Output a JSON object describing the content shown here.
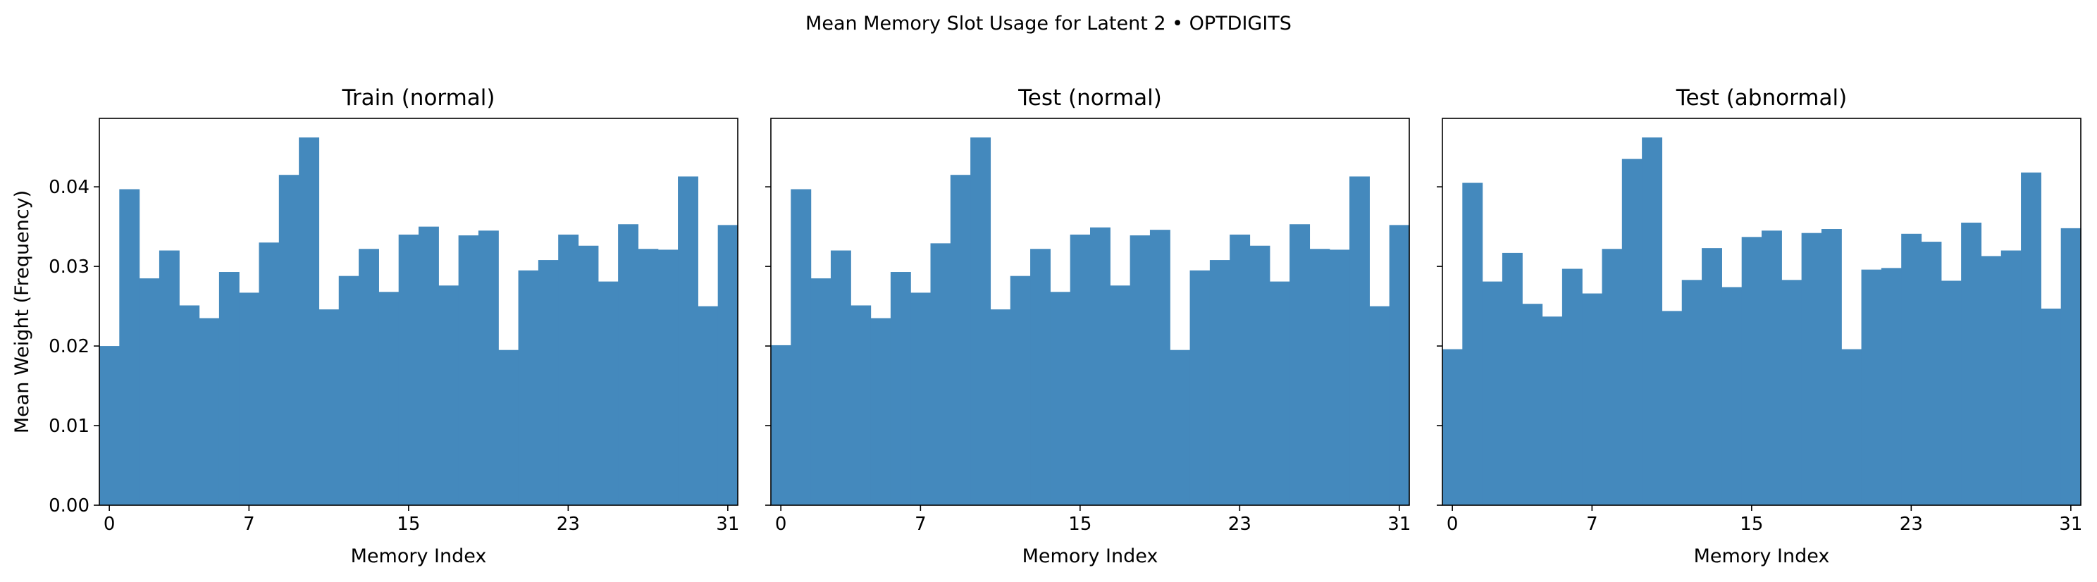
{
  "suptitle": "Mean Memory Slot Usage for Latent 2 • OPTDIGITS",
  "colors": {
    "bar": "#4489bd",
    "axis": "#000000",
    "background": "#ffffff"
  },
  "chart_data": [
    {
      "type": "bar",
      "title": "Train (normal)",
      "xlabel": "Memory Index",
      "ylabel": "Mean Weight (Frequency)",
      "x_ticks": [
        "0",
        "7",
        "15",
        "23",
        "31"
      ],
      "y_ticks": [
        "0.00",
        "0.01",
        "0.02",
        "0.03",
        "0.04"
      ],
      "categories": [
        0,
        1,
        2,
        3,
        4,
        5,
        6,
        7,
        8,
        9,
        10,
        11,
        12,
        13,
        14,
        15,
        16,
        17,
        18,
        19,
        20,
        21,
        22,
        23,
        24,
        25,
        26,
        27,
        28,
        29,
        30,
        31
      ],
      "values": [
        0.02,
        0.0397,
        0.0285,
        0.032,
        0.0251,
        0.0235,
        0.0293,
        0.0267,
        0.033,
        0.0415,
        0.0462,
        0.0246,
        0.0288,
        0.0322,
        0.0268,
        0.034,
        0.035,
        0.0276,
        0.0339,
        0.0345,
        0.0195,
        0.0295,
        0.0308,
        0.034,
        0.0326,
        0.0281,
        0.0353,
        0.0322,
        0.0321,
        0.0413,
        0.025,
        0.0352
      ],
      "ylim": [
        0,
        0.0486
      ],
      "grid": false
    },
    {
      "type": "bar",
      "title": "Test (normal)",
      "xlabel": "Memory Index",
      "ylabel": "",
      "x_ticks": [
        "0",
        "7",
        "15",
        "23",
        "31"
      ],
      "y_ticks": [],
      "categories": [
        0,
        1,
        2,
        3,
        4,
        5,
        6,
        7,
        8,
        9,
        10,
        11,
        12,
        13,
        14,
        15,
        16,
        17,
        18,
        19,
        20,
        21,
        22,
        23,
        24,
        25,
        26,
        27,
        28,
        29,
        30,
        31
      ],
      "values": [
        0.0201,
        0.0397,
        0.0285,
        0.032,
        0.0251,
        0.0235,
        0.0293,
        0.0267,
        0.0329,
        0.0415,
        0.0462,
        0.0246,
        0.0288,
        0.0322,
        0.0268,
        0.034,
        0.0349,
        0.0276,
        0.0339,
        0.0346,
        0.0195,
        0.0295,
        0.0308,
        0.034,
        0.0326,
        0.0281,
        0.0353,
        0.0322,
        0.0321,
        0.0413,
        0.025,
        0.0352
      ],
      "ylim": [
        0,
        0.0486
      ],
      "grid": false
    },
    {
      "type": "bar",
      "title": "Test (abnormal)",
      "xlabel": "Memory Index",
      "ylabel": "",
      "x_ticks": [
        "0",
        "7",
        "15",
        "23",
        "31"
      ],
      "y_ticks": [],
      "categories": [
        0,
        1,
        2,
        3,
        4,
        5,
        6,
        7,
        8,
        9,
        10,
        11,
        12,
        13,
        14,
        15,
        16,
        17,
        18,
        19,
        20,
        21,
        22,
        23,
        24,
        25,
        26,
        27,
        28,
        29,
        30,
        31
      ],
      "values": [
        0.0196,
        0.0405,
        0.0281,
        0.0317,
        0.0253,
        0.0237,
        0.0297,
        0.0266,
        0.0322,
        0.0435,
        0.0462,
        0.0244,
        0.0283,
        0.0323,
        0.0274,
        0.0337,
        0.0345,
        0.0283,
        0.0342,
        0.0347,
        0.0196,
        0.0296,
        0.0298,
        0.0341,
        0.0331,
        0.0282,
        0.0355,
        0.0313,
        0.032,
        0.0418,
        0.0247,
        0.0348
      ],
      "ylim": [
        0,
        0.0486
      ],
      "grid": false
    }
  ]
}
